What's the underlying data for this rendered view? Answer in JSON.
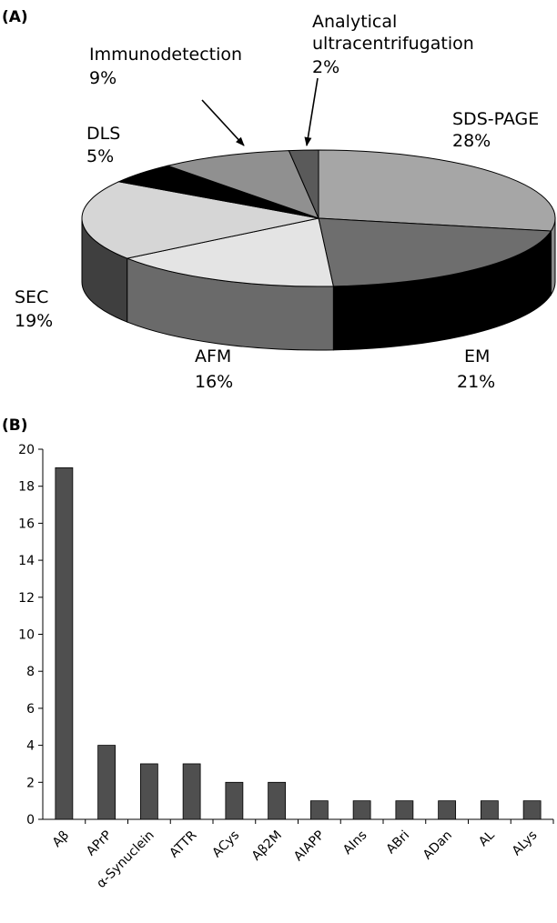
{
  "panel_a_label": "(A)",
  "panel_b_label": "(B)",
  "chart_data": [
    {
      "type": "pie",
      "style": "3d",
      "slices": [
        {
          "name": "SDS-PAGE",
          "value": 28,
          "label": "SDS-PAGE",
          "pct": "28%",
          "top": "#a6a6a6",
          "side": "#8a8a8a"
        },
        {
          "name": "EM",
          "value": 21,
          "label": "EM",
          "pct": "21%",
          "top": "#6e6e6e",
          "side": "#000000"
        },
        {
          "name": "AFM",
          "value": 16,
          "label": "AFM",
          "pct": "16%",
          "top": "#e4e4e4",
          "side": "#6a6a6a"
        },
        {
          "name": "SEC",
          "value": 19,
          "label": "SEC",
          "pct": "19%",
          "top": "#d6d6d6",
          "side": "#3f3f3f"
        },
        {
          "name": "DLS",
          "value": 5,
          "label": "DLS",
          "pct": "5%",
          "top": "#000000",
          "side": "#000000"
        },
        {
          "name": "Immunodetection",
          "value": 9,
          "label": "Immunodetection",
          "pct": "9%",
          "top": "#909090",
          "side": "#606060"
        },
        {
          "name": "Analytical ultracentrifugation",
          "value": 2,
          "label_lines": [
            "Analytical",
            "ultracentrifugation"
          ],
          "pct": "2%",
          "top": "#5a5a5a",
          "side": "#3a3a3a"
        }
      ]
    },
    {
      "type": "bar",
      "categories": [
        "Aβ",
        "APrP",
        "α-Synuclein",
        "ATTR",
        "ACys",
        "Aβ2M",
        "AIAPP",
        "AIns",
        "ABri",
        "ADan",
        "AL",
        "ALys"
      ],
      "values": [
        19,
        4,
        3,
        3,
        2,
        2,
        1,
        1,
        1,
        1,
        1,
        1
      ],
      "ylim": [
        0,
        20
      ],
      "yticks": [
        "0",
        "2",
        "4",
        "6",
        "8",
        "10",
        "12",
        "14",
        "16",
        "18",
        "20"
      ],
      "bar_color": "#4f4f4f",
      "grid": false,
      "xlabel": "",
      "ylabel": ""
    }
  ]
}
